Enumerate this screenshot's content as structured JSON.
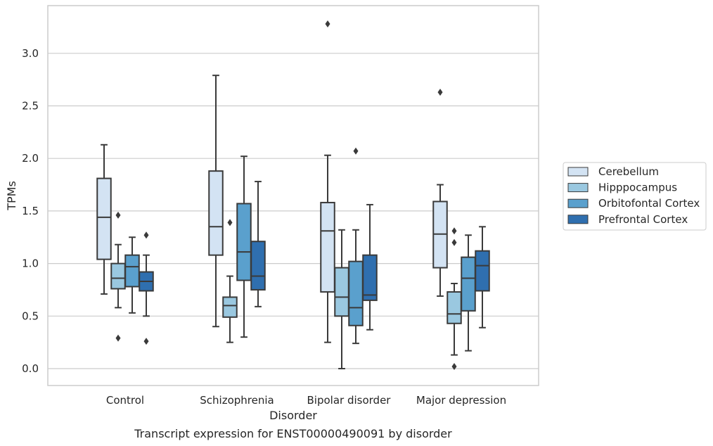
{
  "chart_data": {
    "type": "box",
    "caption": "Transcript expression for ENST00000490091 by disorder",
    "xlabel": "Disorder",
    "ylabel": "TPMs",
    "ylim": [
      -0.16,
      3.45
    ],
    "yticks": [
      "0.0",
      "0.5",
      "1.0",
      "1.5",
      "2.0",
      "2.5",
      "3.0"
    ],
    "yticks_values": [
      0.0,
      0.5,
      1.0,
      1.5,
      2.0,
      2.5,
      3.0
    ],
    "categories": [
      "Control",
      "Schizophrenia",
      "Bipolar disorder",
      "Major depression"
    ],
    "grid": "horizontal",
    "legend_position": "right",
    "series": [
      {
        "name": "Cerebellum",
        "color": "#d3e3f3",
        "boxes": [
          {
            "low": 0.71,
            "q1": 1.04,
            "median": 1.44,
            "q3": 1.81,
            "high": 2.13,
            "outliers": []
          },
          {
            "low": 0.4,
            "q1": 1.08,
            "median": 1.35,
            "q3": 1.88,
            "high": 2.79,
            "outliers": []
          },
          {
            "low": 0.25,
            "q1": 0.73,
            "median": 1.31,
            "q3": 1.58,
            "high": 2.03,
            "outliers": [
              3.28
            ]
          },
          {
            "low": 0.69,
            "q1": 0.96,
            "median": 1.28,
            "q3": 1.59,
            "high": 1.75,
            "outliers": [
              2.63
            ]
          }
        ]
      },
      {
        "name": "Hipppocampus",
        "color": "#9ac8e0",
        "boxes": [
          {
            "low": 0.58,
            "q1": 0.76,
            "median": 0.86,
            "q3": 1.0,
            "high": 1.18,
            "outliers": [
              1.46,
              0.29
            ]
          },
          {
            "low": 0.25,
            "q1": 0.49,
            "median": 0.6,
            "q3": 0.68,
            "high": 0.88,
            "outliers": [
              1.39
            ]
          },
          {
            "low": 0.0,
            "q1": 0.5,
            "median": 0.68,
            "q3": 0.96,
            "high": 1.32,
            "outliers": []
          },
          {
            "low": 0.13,
            "q1": 0.43,
            "median": 0.52,
            "q3": 0.73,
            "high": 0.81,
            "outliers": [
              1.31,
              1.2,
              0.02
            ]
          }
        ]
      },
      {
        "name": "Orbitofontal Cortex",
        "color": "#5aa0cd",
        "boxes": [
          {
            "low": 0.53,
            "q1": 0.78,
            "median": 0.97,
            "q3": 1.08,
            "high": 1.25,
            "outliers": []
          },
          {
            "low": 0.3,
            "q1": 0.84,
            "median": 1.11,
            "q3": 1.57,
            "high": 2.02,
            "outliers": []
          },
          {
            "low": 0.24,
            "q1": 0.41,
            "median": 0.58,
            "q3": 1.02,
            "high": 1.32,
            "outliers": [
              2.07
            ]
          },
          {
            "low": 0.17,
            "q1": 0.55,
            "median": 0.86,
            "q3": 1.06,
            "high": 1.27,
            "outliers": []
          }
        ]
      },
      {
        "name": "Prefrontal Cortex",
        "color": "#2f6faf",
        "boxes": [
          {
            "low": 0.5,
            "q1": 0.74,
            "median": 0.83,
            "q3": 0.92,
            "high": 1.08,
            "outliers": [
              1.27,
              0.26
            ]
          },
          {
            "low": 0.59,
            "q1": 0.75,
            "median": 0.88,
            "q3": 1.21,
            "high": 1.78,
            "outliers": []
          },
          {
            "low": 0.37,
            "q1": 0.65,
            "median": 0.7,
            "q3": 1.08,
            "high": 1.56,
            "outliers": []
          },
          {
            "low": 0.39,
            "q1": 0.74,
            "median": 0.98,
            "q3": 1.12,
            "high": 1.35,
            "outliers": []
          }
        ]
      }
    ]
  }
}
